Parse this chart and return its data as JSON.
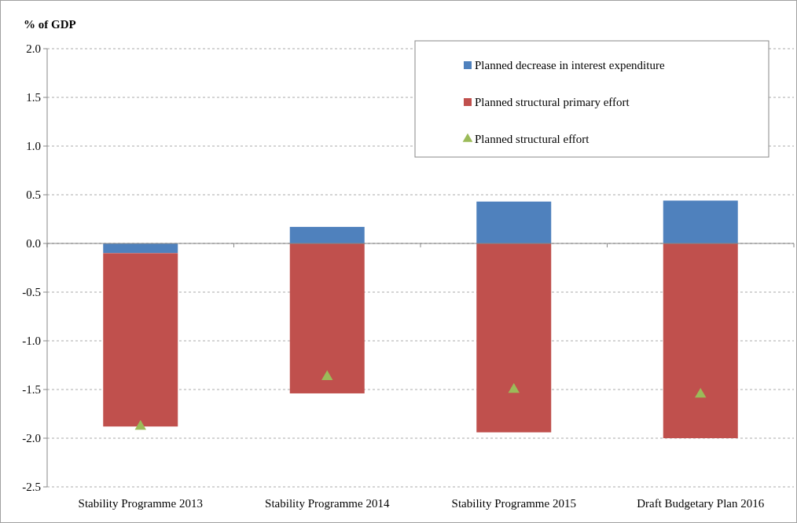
{
  "chart_data": {
    "type": "bar",
    "ylabel": "% of GDP",
    "categories": [
      "Stability Programme 2013",
      "Stability Programme 2014",
      "Stability Programme 2015",
      "Draft Budgetary Plan 2016"
    ],
    "stacked": true,
    "series": [
      {
        "name": "Planned decrease in interest expenditure",
        "color": "#4f81bd",
        "values": [
          -0.1,
          0.17,
          0.43,
          0.44
        ]
      },
      {
        "name": "Planned structural primary effort",
        "color": "#c0504d",
        "values": [
          -1.78,
          -1.54,
          -1.94,
          -2.0
        ]
      },
      {
        "name": "Planned structural effort",
        "type": "scatter",
        "color": "#9bbb59",
        "marker": "triangle",
        "values": [
          -1.88,
          -1.37,
          -1.5,
          -1.55
        ]
      }
    ],
    "ylim": [
      -2.5,
      2.0
    ],
    "yticks": [
      {
        "value": -2.5,
        "label": "-2.5"
      },
      {
        "value": -2,
        "label": "-2.0"
      },
      {
        "value": -1.5,
        "label": "-1.5"
      },
      {
        "value": -1,
        "label": "-1.0"
      },
      {
        "value": -0.5,
        "label": "-0.5"
      },
      {
        "value": 0,
        "label": "0.0"
      },
      {
        "value": 0.5,
        "label": "0.5"
      },
      {
        "value": 1,
        "label": "1.0"
      },
      {
        "value": 1.5,
        "label": "1.5"
      },
      {
        "value": 2,
        "label": "2.0"
      }
    ],
    "grid": "y",
    "legend": "top right"
  }
}
